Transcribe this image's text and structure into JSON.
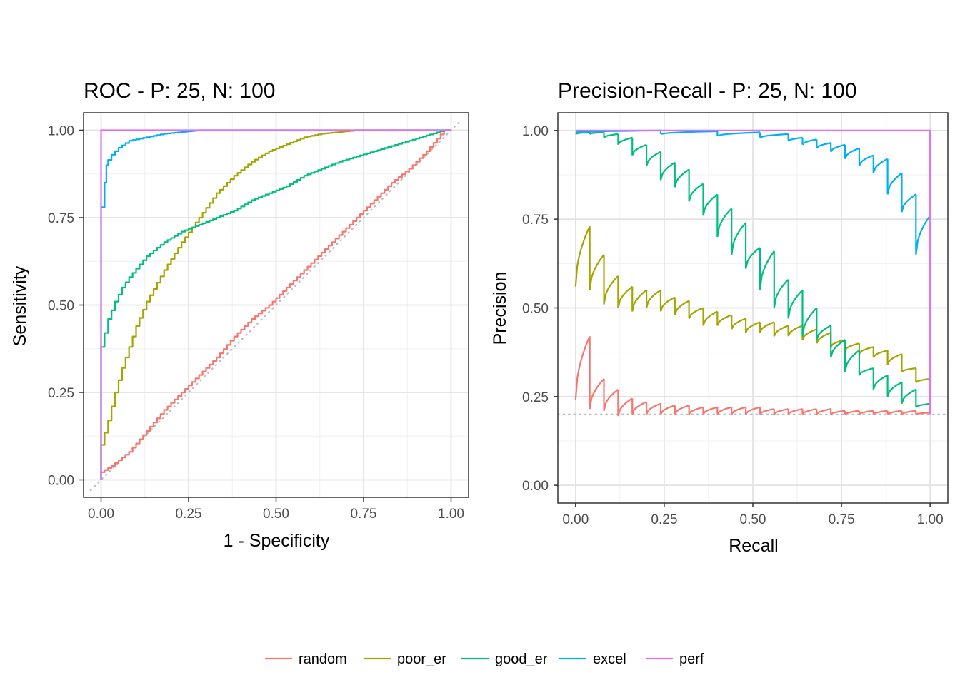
{
  "legend": [
    {
      "name": "random",
      "color": "#F8766D"
    },
    {
      "name": "poor_er",
      "color": "#A3A500"
    },
    {
      "name": "good_er",
      "color": "#00BF7D"
    },
    {
      "name": "excel",
      "color": "#00B0F6"
    },
    {
      "name": "perf",
      "color": "#E76BF3"
    }
  ],
  "chart_data": [
    {
      "type": "line",
      "title": "ROC - P: 25, N: 100",
      "xlabel": "1 - Specificity",
      "ylabel": "Sensitivity",
      "xlim": [
        -0.05,
        1.05
      ],
      "ylim": [
        -0.05,
        1.05
      ],
      "xticks": [
        "0.00",
        "0.25",
        "0.50",
        "0.75",
        "1.00"
      ],
      "yticks": [
        "0.00",
        "0.25",
        "0.50",
        "0.75",
        "1.00"
      ],
      "grid": true,
      "reference_line": {
        "style": "dotted",
        "color": "#bdbdbd",
        "points": [
          [
            -0.03,
            -0.03
          ],
          [
            1.03,
            1.03
          ]
        ]
      },
      "series": [
        {
          "name": "random",
          "color": "#F8766D",
          "step": true,
          "x": [
            0.0,
            0.05,
            0.1,
            0.15,
            0.2,
            0.25,
            0.3,
            0.35,
            0.4,
            0.45,
            0.5,
            0.55,
            0.6,
            0.65,
            0.7,
            0.75,
            0.8,
            0.85,
            0.9,
            0.95,
            1.0
          ],
          "y": [
            0.01,
            0.04,
            0.08,
            0.14,
            0.2,
            0.25,
            0.3,
            0.35,
            0.41,
            0.46,
            0.5,
            0.55,
            0.6,
            0.65,
            0.7,
            0.75,
            0.8,
            0.85,
            0.89,
            0.94,
            1.0
          ]
        },
        {
          "name": "poor_er",
          "color": "#A3A500",
          "step": true,
          "x": [
            0.0,
            0.01,
            0.02,
            0.04,
            0.06,
            0.08,
            0.1,
            0.12,
            0.15,
            0.2,
            0.25,
            0.3,
            0.35,
            0.4,
            0.45,
            0.5,
            0.55,
            0.6,
            0.65,
            0.7,
            0.75,
            0.8,
            0.9,
            1.0
          ],
          "y": [
            0.0,
            0.05,
            0.1,
            0.17,
            0.25,
            0.32,
            0.38,
            0.44,
            0.51,
            0.6,
            0.68,
            0.75,
            0.82,
            0.87,
            0.91,
            0.94,
            0.96,
            0.98,
            0.99,
            0.995,
            1.0,
            1.0,
            1.0,
            1.0
          ]
        },
        {
          "name": "good_er",
          "color": "#00BF7D",
          "step": true,
          "x": [
            0.0,
            0.01,
            0.02,
            0.04,
            0.06,
            0.08,
            0.1,
            0.15,
            0.2,
            0.25,
            0.3,
            0.35,
            0.4,
            0.45,
            0.5,
            0.55,
            0.6,
            0.7,
            0.8,
            0.9,
            1.0
          ],
          "y": [
            0.0,
            0.29,
            0.38,
            0.46,
            0.51,
            0.55,
            0.58,
            0.64,
            0.68,
            0.71,
            0.73,
            0.75,
            0.77,
            0.8,
            0.82,
            0.84,
            0.87,
            0.91,
            0.94,
            0.97,
            1.0
          ]
        },
        {
          "name": "excel",
          "color": "#00B0F6",
          "step": true,
          "x": [
            0.0,
            0.01,
            0.015,
            0.02,
            0.03,
            0.05,
            0.07,
            0.1,
            0.15,
            0.2,
            0.25,
            0.3,
            0.4,
            0.5,
            1.0
          ],
          "y": [
            0.0,
            0.68,
            0.78,
            0.85,
            0.9,
            0.93,
            0.95,
            0.97,
            0.98,
            0.99,
            0.995,
            1.0,
            1.0,
            1.0,
            1.0
          ]
        },
        {
          "name": "perf",
          "color": "#E76BF3",
          "step": false,
          "x": [
            0.0,
            0.0,
            1.0
          ],
          "y": [
            0.0,
            1.0,
            1.0
          ]
        }
      ]
    },
    {
      "type": "line",
      "title": "Precision-Recall - P: 25, N: 100",
      "xlabel": "Recall",
      "ylabel": "Precision",
      "xlim": [
        -0.05,
        1.05
      ],
      "ylim": [
        -0.05,
        1.05
      ],
      "xticks": [
        "0.00",
        "0.25",
        "0.50",
        "0.75",
        "1.00"
      ],
      "yticks": [
        "0.00",
        "0.25",
        "0.50",
        "0.75",
        "1.00"
      ],
      "grid": true,
      "reference_line": {
        "style": "dotted",
        "color": "#bdbdbd",
        "points": [
          [
            -0.05,
            0.2
          ],
          [
            1.05,
            0.2
          ]
        ]
      },
      "series": [
        {
          "name": "random",
          "color": "#F8766D",
          "sawtooth": true,
          "segments": [
            [
              0.0,
              0.04,
              0.24,
              0.42
            ],
            [
              0.04,
              0.08,
              0.215,
              0.3
            ],
            [
              0.08,
              0.12,
              0.21,
              0.27
            ],
            [
              0.12,
              0.16,
              0.195,
              0.245
            ],
            [
              0.16,
              0.2,
              0.2,
              0.235
            ],
            [
              0.2,
              0.24,
              0.2,
              0.23
            ],
            [
              0.24,
              0.28,
              0.2,
              0.225
            ],
            [
              0.28,
              0.32,
              0.2,
              0.225
            ],
            [
              0.32,
              0.36,
              0.2,
              0.22
            ],
            [
              0.36,
              0.4,
              0.2,
              0.22
            ],
            [
              0.4,
              0.44,
              0.2,
              0.22
            ],
            [
              0.44,
              0.48,
              0.2,
              0.22
            ],
            [
              0.48,
              0.52,
              0.2,
              0.22
            ],
            [
              0.52,
              0.56,
              0.2,
              0.215
            ],
            [
              0.56,
              0.6,
              0.2,
              0.215
            ],
            [
              0.6,
              0.64,
              0.2,
              0.215
            ],
            [
              0.64,
              0.68,
              0.2,
              0.215
            ],
            [
              0.68,
              0.72,
              0.2,
              0.215
            ],
            [
              0.72,
              0.76,
              0.2,
              0.21
            ],
            [
              0.76,
              0.8,
              0.2,
              0.21
            ],
            [
              0.8,
              0.84,
              0.2,
              0.21
            ],
            [
              0.84,
              0.88,
              0.2,
              0.21
            ],
            [
              0.88,
              0.92,
              0.2,
              0.21
            ],
            [
              0.92,
              0.96,
              0.2,
              0.21
            ],
            [
              0.96,
              1.0,
              0.2,
              0.205
            ]
          ]
        },
        {
          "name": "poor_er",
          "color": "#A3A500",
          "sawtooth": true,
          "segments": [
            [
              0.0,
              0.04,
              0.56,
              0.73
            ],
            [
              0.04,
              0.08,
              0.55,
              0.65
            ],
            [
              0.08,
              0.12,
              0.51,
              0.59
            ],
            [
              0.12,
              0.16,
              0.5,
              0.56
            ],
            [
              0.16,
              0.2,
              0.49,
              0.55
            ],
            [
              0.2,
              0.24,
              0.5,
              0.55
            ],
            [
              0.24,
              0.28,
              0.49,
              0.53
            ],
            [
              0.28,
              0.32,
              0.48,
              0.52
            ],
            [
              0.32,
              0.36,
              0.47,
              0.5
            ],
            [
              0.36,
              0.4,
              0.45,
              0.49
            ],
            [
              0.4,
              0.44,
              0.45,
              0.48
            ],
            [
              0.44,
              0.48,
              0.44,
              0.47
            ],
            [
              0.48,
              0.52,
              0.43,
              0.46
            ],
            [
              0.52,
              0.56,
              0.43,
              0.46
            ],
            [
              0.56,
              0.6,
              0.42,
              0.45
            ],
            [
              0.6,
              0.64,
              0.42,
              0.45
            ],
            [
              0.64,
              0.68,
              0.41,
              0.44
            ],
            [
              0.68,
              0.72,
              0.4,
              0.43
            ],
            [
              0.72,
              0.76,
              0.39,
              0.41
            ],
            [
              0.76,
              0.8,
              0.38,
              0.4
            ],
            [
              0.8,
              0.84,
              0.37,
              0.39
            ],
            [
              0.84,
              0.88,
              0.36,
              0.38
            ],
            [
              0.88,
              0.92,
              0.34,
              0.37
            ],
            [
              0.92,
              0.96,
              0.32,
              0.33
            ],
            [
              0.96,
              1.0,
              0.29,
              0.3
            ]
          ]
        },
        {
          "name": "good_er",
          "color": "#00BF7D",
          "sawtooth": true,
          "segments": [
            [
              0.0,
              0.04,
              0.99,
              0.995
            ],
            [
              0.04,
              0.08,
              0.99,
              0.995
            ],
            [
              0.08,
              0.12,
              0.98,
              0.99
            ],
            [
              0.12,
              0.16,
              0.96,
              0.98
            ],
            [
              0.16,
              0.2,
              0.93,
              0.96
            ],
            [
              0.2,
              0.24,
              0.9,
              0.94
            ],
            [
              0.24,
              0.28,
              0.86,
              0.91
            ],
            [
              0.28,
              0.32,
              0.84,
              0.89
            ],
            [
              0.32,
              0.36,
              0.8,
              0.85
            ],
            [
              0.36,
              0.4,
              0.76,
              0.82
            ],
            [
              0.4,
              0.44,
              0.7,
              0.78
            ],
            [
              0.44,
              0.48,
              0.65,
              0.74
            ],
            [
              0.48,
              0.52,
              0.61,
              0.67
            ],
            [
              0.52,
              0.56,
              0.55,
              0.66
            ],
            [
              0.56,
              0.6,
              0.5,
              0.58
            ],
            [
              0.6,
              0.64,
              0.47,
              0.55
            ],
            [
              0.64,
              0.68,
              0.42,
              0.5
            ],
            [
              0.68,
              0.72,
              0.41,
              0.45
            ],
            [
              0.72,
              0.76,
              0.36,
              0.41
            ],
            [
              0.76,
              0.8,
              0.32,
              0.38
            ],
            [
              0.8,
              0.84,
              0.31,
              0.33
            ],
            [
              0.84,
              0.88,
              0.27,
              0.31
            ],
            [
              0.88,
              0.92,
              0.25,
              0.29
            ],
            [
              0.92,
              0.96,
              0.23,
              0.27
            ],
            [
              0.96,
              1.0,
              0.22,
              0.23
            ]
          ]
        },
        {
          "name": "excel",
          "color": "#00B0F6",
          "sawtooth": true,
          "segments": [
            [
              0.0,
              0.24,
              0.995,
              1.0
            ],
            [
              0.24,
              0.4,
              0.99,
              0.998
            ],
            [
              0.4,
              0.52,
              0.985,
              0.995
            ],
            [
              0.52,
              0.6,
              0.98,
              0.99
            ],
            [
              0.6,
              0.64,
              0.97,
              0.98
            ],
            [
              0.64,
              0.68,
              0.96,
              0.975
            ],
            [
              0.68,
              0.72,
              0.95,
              0.965
            ],
            [
              0.72,
              0.76,
              0.94,
              0.96
            ],
            [
              0.76,
              0.8,
              0.92,
              0.95
            ],
            [
              0.8,
              0.84,
              0.9,
              0.93
            ],
            [
              0.84,
              0.88,
              0.88,
              0.92
            ],
            [
              0.88,
              0.92,
              0.82,
              0.88
            ],
            [
              0.92,
              0.96,
              0.77,
              0.82
            ],
            [
              0.96,
              1.0,
              0.65,
              0.76
            ]
          ]
        },
        {
          "name": "perf",
          "color": "#E76BF3",
          "sawtooth": false,
          "x": [
            0.0,
            1.0,
            1.0
          ],
          "y": [
            1.0,
            1.0,
            0.2
          ]
        }
      ]
    }
  ]
}
